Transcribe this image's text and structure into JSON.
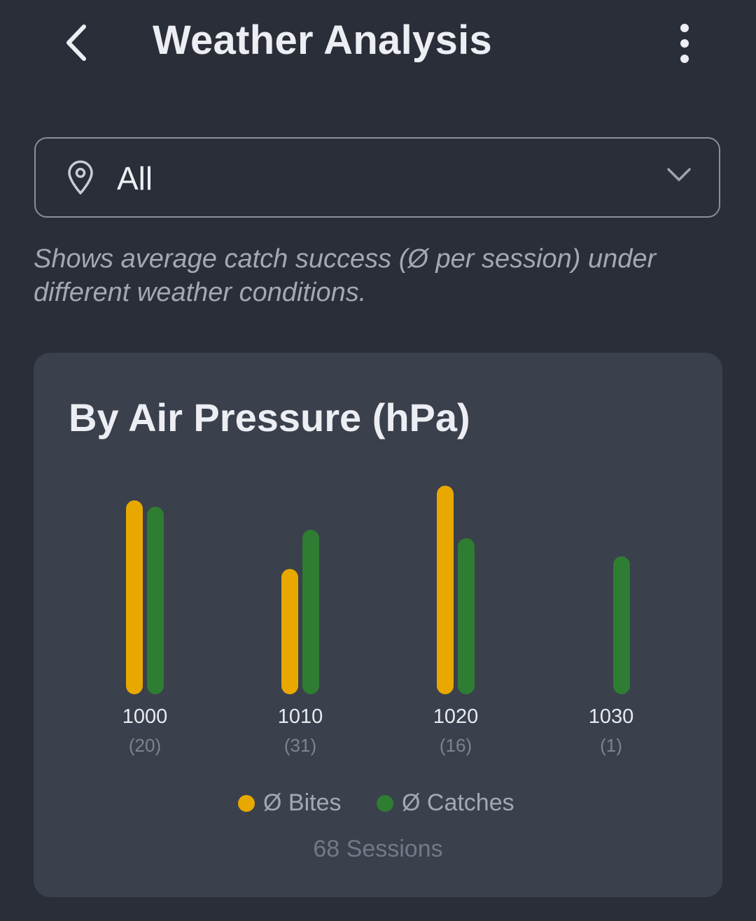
{
  "header": {
    "title": "Weather Analysis",
    "back_icon": "chevron-left-icon",
    "menu_icon": "more-vertical-icon"
  },
  "location_select": {
    "value": "All",
    "icon": "map-pin-icon",
    "chevron": "chevron-down-icon"
  },
  "description": "Shows average catch success (Ø per session) under different weather conditions.",
  "card": {
    "title": "By Air Pressure (hPa)",
    "sessions_label": "68 Sessions"
  },
  "colors": {
    "background": "#2a2e38",
    "card": "#3a404c",
    "bites": "#e8a800",
    "catches": "#2e7d32"
  },
  "chart_data": {
    "type": "bar",
    "title": "By Air Pressure (hPa)",
    "categories": [
      "1000",
      "1010",
      "1020",
      "1030"
    ],
    "session_counts": [
      "(20)",
      "(31)",
      "(16)",
      "(1)"
    ],
    "value_scale": "relative to tallest bar (no axis shown)",
    "series": [
      {
        "name": "Ø Bites",
        "color": "#e8a800",
        "values": [
          0.93,
          0.6,
          1.0,
          0
        ]
      },
      {
        "name": "Ø Catches",
        "color": "#2e7d32",
        "values": [
          0.9,
          0.79,
          0.75,
          0.66
        ]
      }
    ],
    "legend": "bottom",
    "grid": false
  }
}
